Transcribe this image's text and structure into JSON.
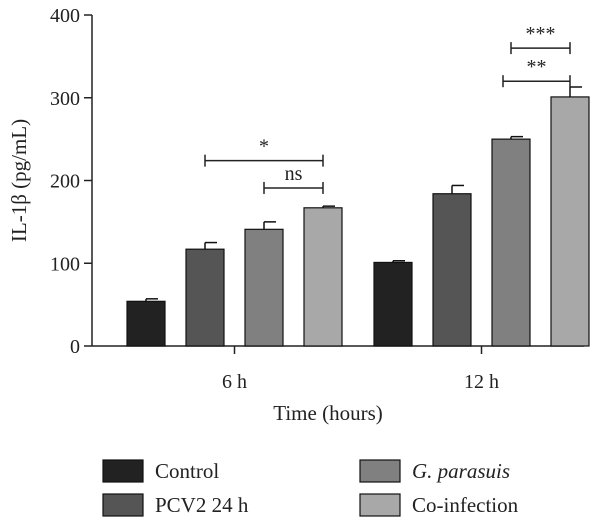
{
  "chart_data": {
    "type": "bar",
    "categories": [
      "6 h",
      "12 h"
    ],
    "series": [
      {
        "name": "Control",
        "values": [
          54,
          101
        ],
        "errors": [
          3,
          2
        ],
        "color": "#222222"
      },
      {
        "name": "PCV2 24 h",
        "values": [
          117,
          184
        ],
        "errors": [
          8,
          10
        ],
        "color": "#555555"
      },
      {
        "name_prefix": "G. parasuis",
        "name": "G. parasuis",
        "values": [
          141,
          250
        ],
        "errors": [
          9,
          3
        ],
        "color": "#808080",
        "italic": true
      },
      {
        "name": "Co-infection",
        "values": [
          167,
          301
        ],
        "errors": [
          2,
          12
        ],
        "color": "#a8a8a8"
      }
    ],
    "xlabel": "Time (hours)",
    "ylabel": "IL-1β (pg/mL)",
    "ylim": [
      0,
      400
    ],
    "yticks": [
      0,
      100,
      200,
      300,
      400
    ],
    "grid": false,
    "legend_position": "bottom",
    "significance": [
      {
        "category": 0,
        "from": 1,
        "to": 3,
        "label": "*",
        "y": 224
      },
      {
        "category": 0,
        "from": 2,
        "to": 3,
        "label": "ns",
        "y": 191
      },
      {
        "category": 1,
        "from": 2,
        "to": 3,
        "label": "***",
        "y": 360
      },
      {
        "category": 1,
        "from": 2,
        "to": 3,
        "label": "**",
        "y": 320,
        "short": true
      }
    ]
  },
  "legend": {
    "items": [
      {
        "label": "Control",
        "color": "#222222",
        "italic": false
      },
      {
        "label": "PCV2 24 h",
        "color": "#555555",
        "italic": false
      },
      {
        "label": "G. parasuis",
        "color": "#808080",
        "italic": true
      },
      {
        "label": "Co-infection",
        "color": "#a8a8a8",
        "italic": false
      }
    ]
  }
}
